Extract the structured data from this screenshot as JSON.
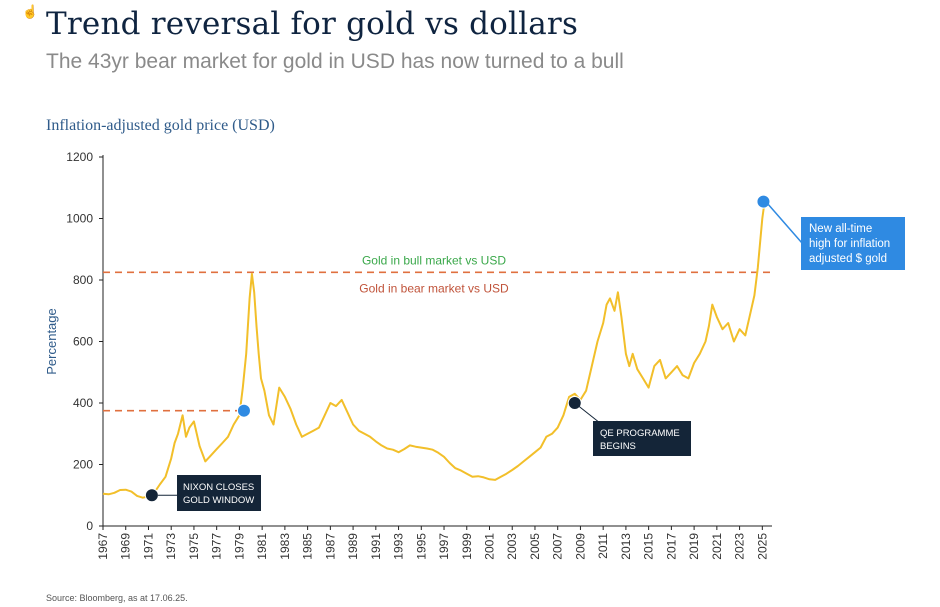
{
  "header": {
    "title": "Trend reversal for gold vs dollars",
    "subtitle": "The 43yr bear market for gold in USD has now turned to a bull",
    "chart_label": "Inflation-adjusted gold price (USD)"
  },
  "footer": {
    "source": "Source: Bloomberg, as at 17.06.25."
  },
  "colors": {
    "line": "#f2bf2a",
    "dashed": "#e0703f",
    "marker_blue": "#2f8ae2",
    "marker_dark": "#142538",
    "callout_dark": "#142538",
    "callout_blue": "#2f8ae2",
    "bull_text": "#3aa84a",
    "bear_text": "#c0533a"
  },
  "icons": {
    "cursor": "hand-cursor-icon"
  },
  "chart_data": {
    "type": "line",
    "title": "",
    "xlabel": "",
    "ylabel": "Percentage",
    "ylim": [
      0,
      1200
    ],
    "xlim": [
      1967,
      2025.5
    ],
    "yticks": [
      0,
      200,
      400,
      600,
      800,
      1000,
      1200
    ],
    "xticks": [
      "1967",
      "1969",
      "1971",
      "1973",
      "1975",
      "1977",
      "1979",
      "1981",
      "1983",
      "1985",
      "1987",
      "1989",
      "1991",
      "1993",
      "1995",
      "1997",
      "1999",
      "2001",
      "2003",
      "2005",
      "2007",
      "2009",
      "2011",
      "2013",
      "2015",
      "2017",
      "2019",
      "2021",
      "2023",
      "2025"
    ],
    "grid": false,
    "series": [
      {
        "x": [
          1967,
          1967.5,
          1968,
          1968.5,
          1969,
          1969.5,
          1970,
          1970.5,
          1971,
          1971.5,
          1972,
          1972.5,
          1973,
          1973.3,
          1973.6,
          1974,
          1974.3,
          1974.6,
          1975,
          1975.5,
          1976,
          1976.5,
          1977,
          1977.5,
          1978,
          1978.5,
          1979,
          1979.3,
          1979.6,
          1979.9,
          1980.1,
          1980.3,
          1980.5,
          1980.7,
          1980.9,
          1981.2,
          1981.6,
          1982,
          1982.5,
          1983,
          1983.5,
          1984,
          1984.5,
          1985,
          1985.5,
          1986,
          1986.5,
          1987,
          1987.5,
          1988,
          1988.5,
          1989,
          1989.5,
          1990,
          1990.5,
          1991,
          1991.5,
          1992,
          1992.5,
          1993,
          1993.5,
          1994,
          1994.5,
          1995,
          1995.5,
          1996,
          1996.5,
          1997,
          1997.5,
          1998,
          1998.5,
          1999,
          1999.5,
          2000,
          2000.5,
          2001,
          2001.5,
          2002,
          2002.5,
          2003,
          2003.5,
          2004,
          2004.5,
          2005,
          2005.5,
          2006,
          2006.5,
          2007,
          2007.5,
          2008,
          2008.5,
          2009,
          2009.5,
          2010,
          2010.5,
          2011,
          2011.3,
          2011.6,
          2012,
          2012.3,
          2012.6,
          2013,
          2013.3,
          2013.6,
          2014,
          2014.5,
          2015,
          2015.5,
          2016,
          2016.5,
          2017,
          2017.5,
          2018,
          2018.5,
          2019,
          2019.5,
          2020,
          2020.3,
          2020.6,
          2021,
          2021.5,
          2022,
          2022.5,
          2023,
          2023.5,
          2024,
          2024.3,
          2024.6,
          2025,
          2025.2
        ],
        "values": [
          105,
          103,
          108,
          117,
          118,
          112,
          98,
          92,
          96,
          108,
          135,
          160,
          220,
          270,
          300,
          360,
          290,
          320,
          340,
          260,
          210,
          230,
          250,
          270,
          290,
          330,
          360,
          450,
          560,
          740,
          820,
          760,
          650,
          560,
          480,
          440,
          360,
          330,
          450,
          420,
          380,
          330,
          290,
          300,
          310,
          320,
          360,
          400,
          390,
          410,
          370,
          330,
          310,
          300,
          290,
          275,
          262,
          252,
          248,
          240,
          250,
          262,
          258,
          255,
          252,
          248,
          238,
          225,
          205,
          188,
          180,
          170,
          160,
          162,
          158,
          152,
          150,
          160,
          170,
          182,
          195,
          210,
          225,
          240,
          255,
          290,
          300,
          320,
          360,
          420,
          430,
          410,
          440,
          520,
          600,
          660,
          720,
          740,
          700,
          760,
          680,
          560,
          520,
          560,
          510,
          480,
          450,
          520,
          540,
          480,
          500,
          520,
          490,
          480,
          530,
          560,
          600,
          650,
          720,
          680,
          640,
          660,
          600,
          640,
          620,
          700,
          750,
          840,
          1000,
          1055
        ]
      }
    ],
    "reference_levels": [
      {
        "y": 825,
        "label_above": "Gold in bull market vs USD",
        "label_below": "Gold in bear market vs USD"
      },
      {
        "y": 375,
        "x_end": 1979.4
      }
    ],
    "markers": [
      {
        "x": 1971.3,
        "y": 100,
        "style": "dark",
        "callout": [
          "NIXON CLOSES",
          "GOLD WINDOW"
        ]
      },
      {
        "x": 1979.4,
        "y": 375,
        "style": "blue"
      },
      {
        "x": 2008.5,
        "y": 400,
        "style": "dark",
        "callout": [
          "QE PROGRAMME",
          "BEGINS"
        ]
      },
      {
        "x": 2025.1,
        "y": 1055,
        "style": "blue",
        "callout": [
          "New all-time",
          "high for inflation",
          "adjusted $ gold"
        ]
      }
    ]
  }
}
